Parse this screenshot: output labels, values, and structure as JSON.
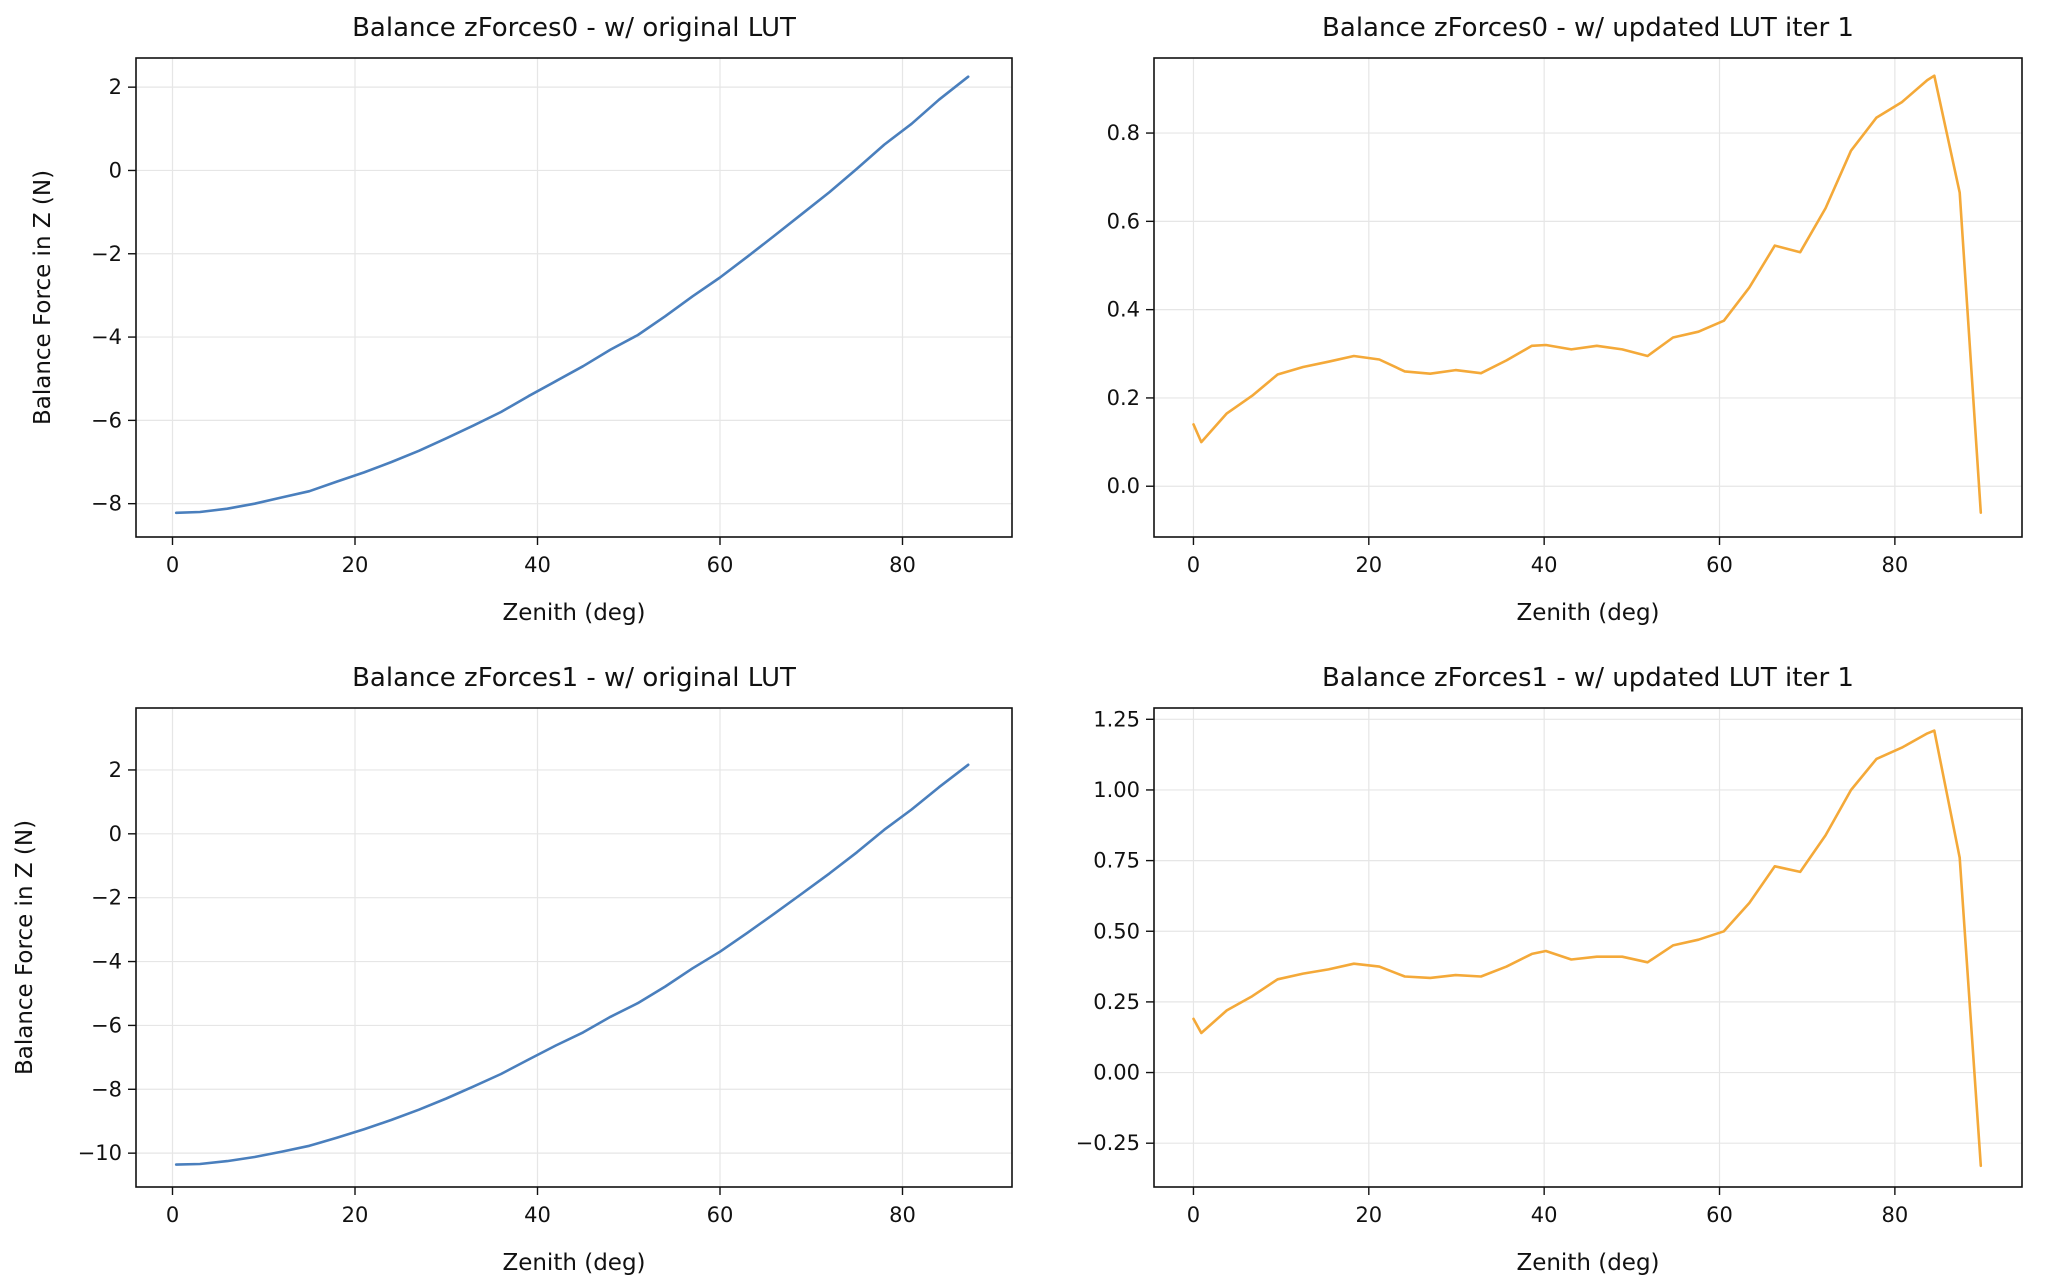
{
  "figure": {
    "xlabel": "Zenith (deg)",
    "ylabel": "Balance Force in Z (N)"
  },
  "chart_data": [
    {
      "type": "line",
      "title": "Balance zForces0 - w/ original LUT",
      "xlabel": "Zenith (deg)",
      "ylabel": "Balance Force in Z (N)",
      "xlim": [
        -4,
        92
      ],
      "ylim": [
        -8.8,
        2.7
      ],
      "xticks": [
        0,
        20,
        40,
        60,
        80
      ],
      "yticks": [
        -8,
        -6,
        -4,
        -2,
        0,
        2
      ],
      "ytick_labels": [
        "−8",
        "−6",
        "−4",
        "−2",
        "0",
        "2"
      ],
      "grid": true,
      "color": "#4a7fbd",
      "x": [
        0.4,
        3,
        6,
        9,
        12,
        15,
        18,
        21,
        24,
        27,
        30,
        33,
        36,
        39,
        42,
        45,
        48,
        51,
        54,
        57,
        60,
        63,
        66,
        69,
        72,
        75,
        78,
        81,
        84,
        87.2
      ],
      "y": [
        -8.22,
        -8.2,
        -8.12,
        -8.0,
        -7.85,
        -7.7,
        -7.47,
        -7.25,
        -7.0,
        -6.73,
        -6.43,
        -6.12,
        -5.8,
        -5.42,
        -5.06,
        -4.7,
        -4.3,
        -3.95,
        -3.5,
        -3.02,
        -2.57,
        -2.07,
        -1.56,
        -1.04,
        -0.52,
        0.04,
        0.62,
        1.12,
        1.7,
        2.25
      ]
    },
    {
      "type": "line",
      "title": "Balance zForces0 - w/ updated LUT iter 1",
      "xlabel": "Zenith (deg)",
      "ylabel": "",
      "xlim": [
        -4.5,
        94.5
      ],
      "ylim": [
        -0.115,
        0.97
      ],
      "xticks": [
        0,
        20,
        40,
        60,
        80
      ],
      "yticks": [
        0.0,
        0.2,
        0.4,
        0.6,
        0.8
      ],
      "ytick_labels": [
        "0.0",
        "0.2",
        "0.4",
        "0.6",
        "0.8"
      ],
      "grid": true,
      "color": "#f4a939",
      "x": [
        0,
        0.9,
        3.8,
        6.7,
        9.6,
        12.5,
        15.4,
        18.3,
        21.2,
        24.1,
        27,
        29.9,
        32.8,
        35.7,
        38.6,
        40.2,
        43.1,
        46,
        48.9,
        51.8,
        54.7,
        57.6,
        60.5,
        63.4,
        66.3,
        69.2,
        72.1,
        75,
        77.9,
        80.8,
        83.7,
        84.5,
        87.4,
        89.8
      ],
      "y": [
        0.14,
        0.1,
        0.165,
        0.205,
        0.253,
        0.27,
        0.282,
        0.295,
        0.287,
        0.26,
        0.255,
        0.263,
        0.256,
        0.285,
        0.318,
        0.32,
        0.31,
        0.318,
        0.31,
        0.295,
        0.337,
        0.35,
        0.375,
        0.45,
        0.545,
        0.53,
        0.63,
        0.76,
        0.835,
        0.87,
        0.92,
        0.93,
        0.665,
        -0.06
      ]
    },
    {
      "type": "line",
      "title": "Balance zForces1 - w/ original LUT",
      "xlabel": "Zenith (deg)",
      "ylabel": "Balance Force in Z (N)",
      "xlim": [
        -4,
        92
      ],
      "ylim": [
        -11.06,
        3.94
      ],
      "xticks": [
        0,
        20,
        40,
        60,
        80
      ],
      "yticks": [
        -10,
        -8,
        -6,
        -4,
        -2,
        0,
        2
      ],
      "ytick_labels": [
        "−10",
        "−8",
        "−6",
        "−4",
        "−2",
        "0",
        "2"
      ],
      "grid": true,
      "color": "#4a7fbd",
      "x": [
        0.4,
        3,
        6,
        9,
        12,
        15,
        18,
        21,
        24,
        27,
        30,
        33,
        36,
        39,
        42,
        45,
        48,
        51,
        54,
        57,
        60,
        63,
        66,
        69,
        72,
        75,
        78,
        81,
        84,
        87.2
      ],
      "y": [
        -10.36,
        -10.34,
        -10.25,
        -10.12,
        -9.95,
        -9.77,
        -9.52,
        -9.25,
        -8.96,
        -8.64,
        -8.29,
        -7.91,
        -7.52,
        -7.07,
        -6.63,
        -6.22,
        -5.73,
        -5.3,
        -4.78,
        -4.21,
        -3.69,
        -3.1,
        -2.49,
        -1.87,
        -1.24,
        -0.58,
        0.13,
        0.76,
        1.46,
        2.16
      ]
    },
    {
      "type": "line",
      "title": "Balance zForces1 - w/ updated LUT iter 1",
      "xlabel": "Zenith (deg)",
      "ylabel": "",
      "xlim": [
        -4.5,
        94.5
      ],
      "ylim": [
        -0.405,
        1.29
      ],
      "xticks": [
        0,
        20,
        40,
        60,
        80
      ],
      "yticks": [
        -0.25,
        0.0,
        0.25,
        0.5,
        0.75,
        1.0,
        1.25
      ],
      "ytick_labels": [
        "−0.25",
        "0.00",
        "0.25",
        "0.50",
        "0.75",
        "1.00",
        "1.25"
      ],
      "grid": true,
      "color": "#f4a939",
      "x": [
        0,
        0.9,
        3.8,
        6.7,
        9.6,
        12.5,
        15.4,
        18.3,
        21.2,
        24.1,
        27,
        29.9,
        32.8,
        35.7,
        38.6,
        40.2,
        43.1,
        46,
        48.9,
        51.8,
        54.7,
        57.6,
        60.5,
        63.4,
        66.3,
        69.2,
        72.1,
        75,
        77.9,
        80.8,
        83.7,
        84.5,
        87.4,
        89.8
      ],
      "y": [
        0.19,
        0.14,
        0.22,
        0.27,
        0.33,
        0.35,
        0.365,
        0.385,
        0.375,
        0.34,
        0.335,
        0.345,
        0.34,
        0.375,
        0.42,
        0.43,
        0.4,
        0.41,
        0.41,
        0.39,
        0.45,
        0.47,
        0.5,
        0.6,
        0.73,
        0.71,
        0.84,
        1.0,
        1.11,
        1.15,
        1.2,
        1.21,
        0.76,
        -0.33
      ]
    }
  ]
}
